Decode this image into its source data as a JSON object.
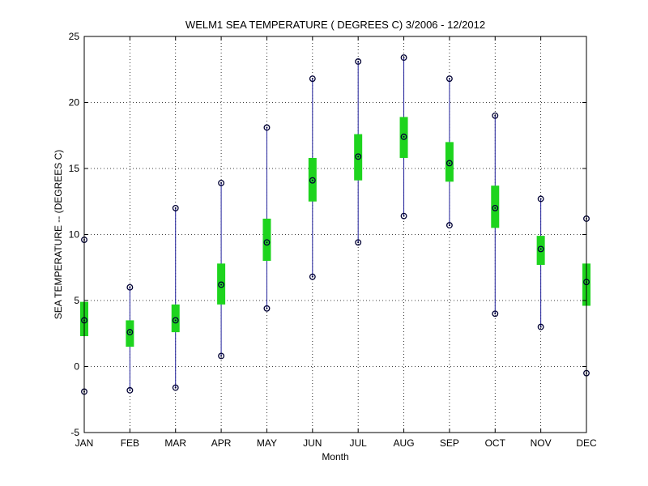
{
  "chart_data": {
    "type": "box",
    "title": "WELM1  SEA TEMPERATURE ( DEGREES C) 3/2006 - 12/2012",
    "xlabel": "Month",
    "ylabel": "SEA TEMPERATURE -- (DEGREES C)",
    "categories": [
      "JAN",
      "FEB",
      "MAR",
      "APR",
      "MAY",
      "JUN",
      "JUL",
      "AUG",
      "SEP",
      "OCT",
      "NOV",
      "DEC"
    ],
    "ylim": [
      -5,
      25
    ],
    "yticks": [
      -5,
      0,
      5,
      10,
      15,
      20,
      25
    ],
    "grid": true,
    "min": [
      -1.9,
      -1.8,
      -1.6,
      0.8,
      4.4,
      6.8,
      9.4,
      11.4,
      10.7,
      4.0,
      3.0,
      -0.5
    ],
    "q1": [
      2.3,
      1.5,
      2.6,
      4.7,
      8.0,
      12.5,
      14.1,
      15.8,
      14.0,
      10.5,
      7.7,
      4.6
    ],
    "mean": [
      3.5,
      2.6,
      3.5,
      6.2,
      9.4,
      14.1,
      15.9,
      17.4,
      15.4,
      12.0,
      8.9,
      6.4
    ],
    "q3": [
      4.9,
      3.5,
      4.7,
      7.8,
      11.2,
      15.8,
      17.6,
      18.9,
      17.0,
      13.7,
      9.9,
      7.8
    ],
    "max": [
      9.6,
      6.0,
      12.0,
      13.9,
      18.1,
      21.8,
      23.1,
      23.4,
      21.8,
      19.0,
      12.7,
      11.2
    ],
    "colors": {
      "whisker": "#1f1f9a",
      "box": "#1ed41e",
      "marker": "#000033",
      "grid": "#000000"
    }
  }
}
